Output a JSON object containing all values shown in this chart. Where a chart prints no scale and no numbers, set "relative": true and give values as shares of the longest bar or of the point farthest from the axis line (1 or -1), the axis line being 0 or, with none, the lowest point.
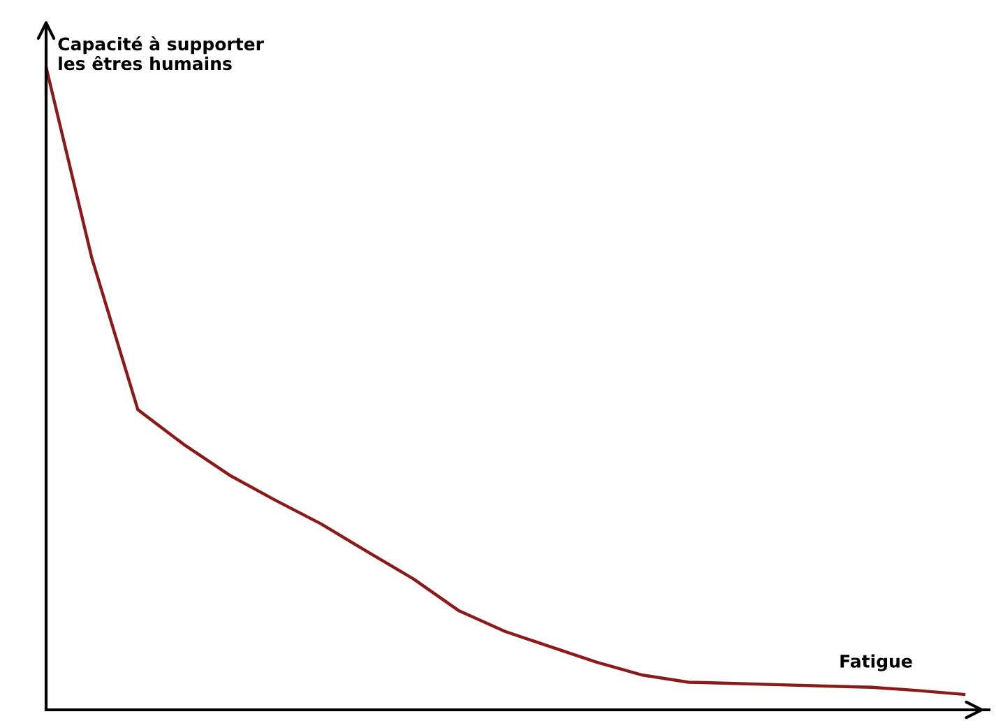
{
  "chart_data": {
    "type": "line",
    "relative": true,
    "xlabel": "Fatigue",
    "ylabel": "Capacité à supporter\nles êtres humains",
    "categories": [
      null,
      null,
      null,
      null,
      null,
      null,
      null,
      null,
      null,
      null,
      null,
      null,
      null,
      null,
      null,
      null,
      null,
      null,
      null,
      null,
      null
    ],
    "series": [
      {
        "color": "#8b1a1a",
        "values": [
          1.0,
          0.702,
          0.467,
          0.413,
          0.365,
          0.326,
          0.289,
          0.246,
          0.204,
          0.154,
          0.122,
          0.098,
          0.074,
          0.054,
          0.043,
          0.041,
          0.039,
          0.037,
          0.035,
          0.03,
          0.024
        ]
      }
    ],
    "grid": false,
    "marker": "none",
    "line_style": "solid"
  }
}
